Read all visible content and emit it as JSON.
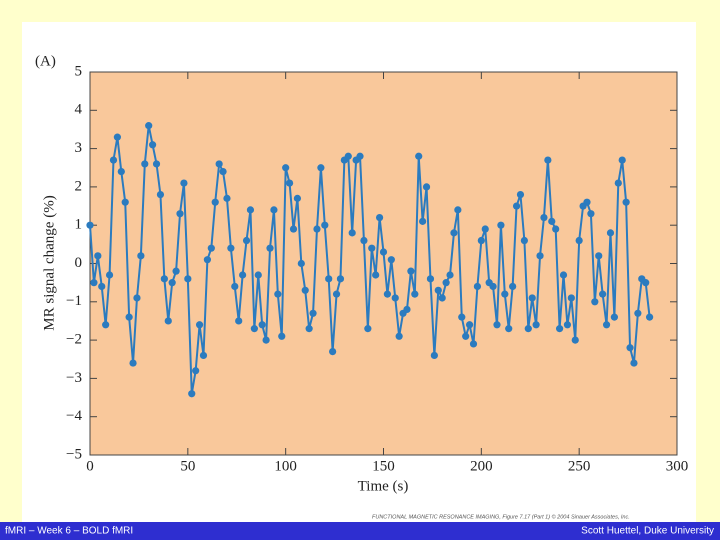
{
  "chart_data": {
    "type": "line",
    "annotation": "(A)",
    "x_label": "Time (s)",
    "y_label": "MR signal change (%)",
    "x": [
      0,
      2,
      4,
      6,
      8,
      10,
      12,
      14,
      16,
      18,
      20,
      22,
      24,
      26,
      28,
      30,
      32,
      34,
      36,
      38,
      40,
      42,
      44,
      46,
      48,
      50,
      52,
      54,
      56,
      58,
      60,
      62,
      64,
      66,
      68,
      70,
      72,
      74,
      76,
      78,
      80,
      82,
      84,
      86,
      88,
      90,
      92,
      94,
      96,
      98,
      100,
      102,
      104,
      106,
      108,
      110,
      112,
      114,
      116,
      118,
      120,
      122,
      124,
      126,
      128,
      130,
      132,
      134,
      136,
      138,
      140,
      142,
      144,
      146,
      148,
      150,
      152,
      154,
      156,
      158,
      160,
      162,
      164,
      166,
      168,
      170,
      172,
      174,
      176,
      178,
      180,
      182,
      184,
      186,
      188,
      190,
      192,
      194,
      196,
      198,
      200,
      202,
      204,
      206,
      208,
      210,
      212,
      214,
      216,
      218,
      220,
      222,
      224,
      226,
      228,
      230,
      232,
      234,
      236,
      238,
      240,
      242,
      244,
      246,
      248,
      250,
      252,
      254,
      256,
      258,
      260,
      262,
      264,
      266,
      268,
      270,
      272,
      274,
      276,
      278,
      280,
      282,
      284,
      286
    ],
    "values": [
      1.0,
      -0.5,
      0.2,
      -0.6,
      -1.6,
      -0.3,
      2.7,
      3.3,
      2.4,
      1.6,
      -1.4,
      -2.6,
      -0.9,
      0.2,
      2.6,
      3.6,
      3.1,
      2.6,
      1.8,
      -0.4,
      -1.5,
      -0.5,
      -0.2,
      1.3,
      2.1,
      -0.4,
      -3.4,
      -2.8,
      -1.6,
      -2.4,
      0.1,
      0.4,
      1.6,
      2.6,
      2.4,
      1.7,
      0.4,
      -0.6,
      -1.5,
      -0.3,
      0.6,
      1.4,
      -1.7,
      -0.3,
      -1.6,
      -2.0,
      0.4,
      1.4,
      -0.8,
      -1.9,
      2.5,
      2.1,
      0.9,
      1.7,
      0.0,
      -0.7,
      -1.7,
      -1.3,
      0.9,
      2.5,
      1.0,
      -0.4,
      -2.3,
      -0.8,
      -0.4,
      2.7,
      2.8,
      0.8,
      2.7,
      2.8,
      0.6,
      -1.7,
      0.4,
      -0.3,
      1.2,
      0.3,
      -0.8,
      0.1,
      -0.9,
      -1.9,
      -1.3,
      -1.2,
      -0.2,
      -0.8,
      2.8,
      1.1,
      2.0,
      -0.4,
      -2.4,
      -0.7,
      -0.9,
      -0.5,
      -0.3,
      0.8,
      1.4,
      -1.4,
      -1.9,
      -1.6,
      -2.1,
      -0.6,
      0.6,
      0.9,
      -0.5,
      -0.6,
      -1.6,
      1.0,
      -0.8,
      -1.7,
      -0.6,
      1.5,
      1.8,
      0.6,
      -1.7,
      -0.9,
      -1.6,
      0.2,
      1.2,
      2.7,
      1.1,
      0.9,
      -1.7,
      -0.3,
      -1.6,
      -0.9,
      -2.0,
      0.6,
      1.5,
      1.6,
      1.3,
      -1.0,
      0.2,
      -0.8,
      -1.6,
      0.8,
      -1.4,
      2.1,
      2.7,
      1.6,
      -2.2,
      -2.6,
      -1.3,
      -0.4,
      -0.5,
      -1.4
    ],
    "color": "#2b7bbf",
    "xlim": [
      0,
      300
    ],
    "xticks": [
      0,
      50,
      100,
      150,
      200,
      250,
      300
    ],
    "ylim": [
      -5,
      5
    ],
    "yticks": [
      {
        "value": -5,
        "label": "−5"
      },
      {
        "value": -4,
        "label": "−4"
      },
      {
        "value": -3,
        "label": "−3"
      },
      {
        "value": -2,
        "label": "−2"
      },
      {
        "value": -1,
        "label": "−1"
      },
      0,
      1,
      2,
      3,
      4,
      5
    ]
  },
  "caption": "FUNCTIONAL MAGNETIC RESONANCE IMAGING, Figure 7.17 (Part 1) © 2004 Sinauer Associates, Inc.",
  "footer": {
    "left": "fMRI – Week 6 – BOLD fMRI",
    "right": "Scott Huettel, Duke University"
  }
}
